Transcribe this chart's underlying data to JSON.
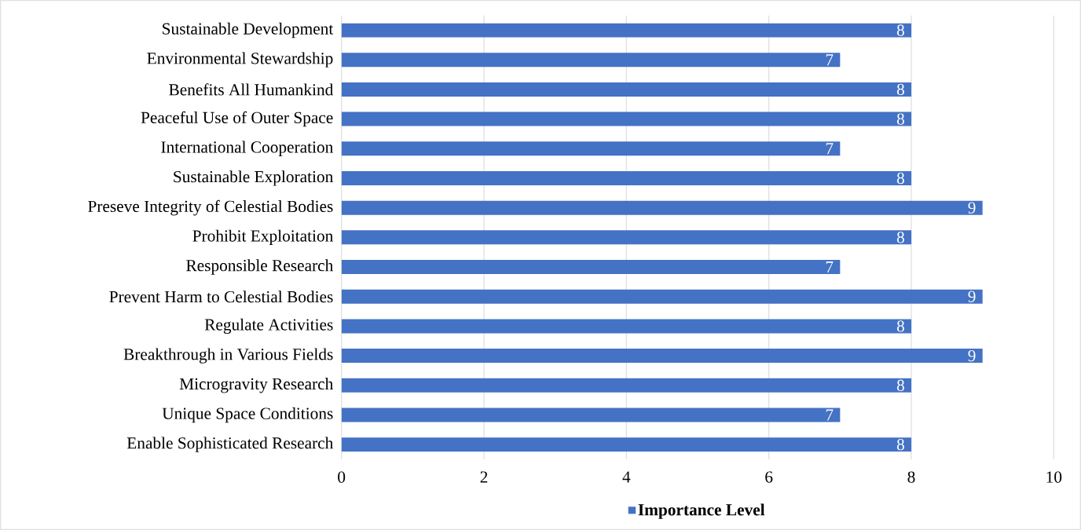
{
  "chart_data": {
    "type": "bar",
    "orientation": "horizontal",
    "categories": [
      "Sustainable Development",
      "Environmental Stewardship",
      "Benefits All Humankind",
      "Peaceful Use of Outer Space",
      "International Cooperation",
      "Sustainable Exploration",
      "Preseve Integrity of Celestial Bodies",
      "Prohibit Exploitation",
      "Responsible Research",
      "Prevent Harm to Celestial Bodies",
      "Regulate Activities",
      "Breakthrough in Various Fields",
      "Microgravity Research",
      "Unique Space Conditions",
      "Enable Sophisticated Research"
    ],
    "series": [
      {
        "name": "Importance Level",
        "color": "#4472c4",
        "values": [
          8,
          7,
          8,
          8,
          7,
          8,
          9,
          8,
          7,
          9,
          8,
          9,
          8,
          7,
          8
        ]
      }
    ],
    "xlim": [
      0,
      10
    ],
    "xticks": [
      0,
      2,
      4,
      6,
      8,
      10
    ],
    "grid": "x",
    "legend": "bottom",
    "data_labels": true
  }
}
